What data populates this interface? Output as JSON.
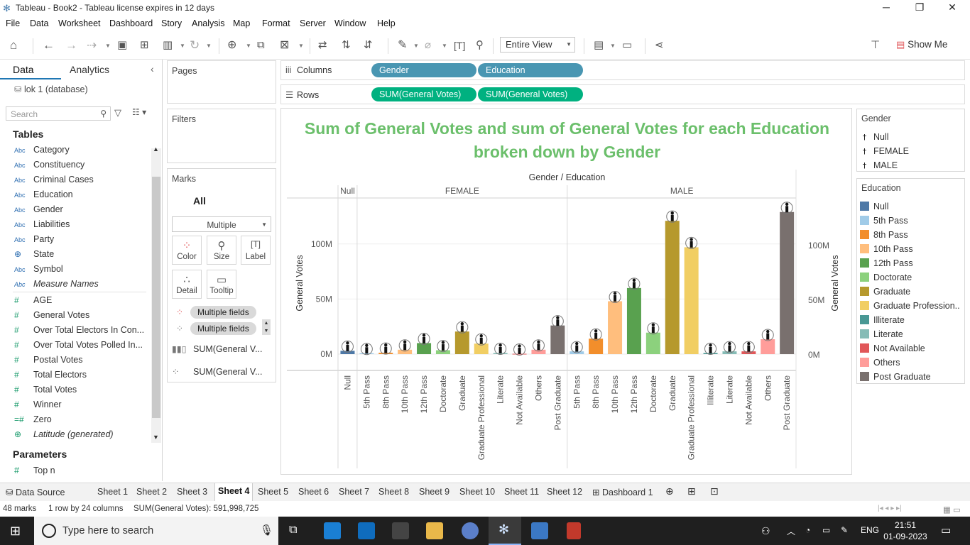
{
  "window": {
    "title": "Tableau - Book2 - Tableau license expires in 12 days"
  },
  "menu": [
    "File",
    "Data",
    "Worksheet",
    "Dashboard",
    "Story",
    "Analysis",
    "Map",
    "Format",
    "Server",
    "Window",
    "Help"
  ],
  "toolbar": {
    "fit_label": "Entire View",
    "show_me": "Show Me"
  },
  "data_pane": {
    "tab_data": "Data",
    "tab_analytics": "Analytics",
    "datasource": "lok 1 (database)",
    "search_placeholder": "Search",
    "tables_heading": "Tables",
    "fields": [
      {
        "type": "Abc",
        "name": "Category"
      },
      {
        "type": "Abc",
        "name": "Constituency"
      },
      {
        "type": "Abc",
        "name": "Criminal Cases"
      },
      {
        "type": "Abc",
        "name": "Education"
      },
      {
        "type": "Abc",
        "name": "Gender"
      },
      {
        "type": "Abc",
        "name": "Liabilities"
      },
      {
        "type": "Abc",
        "name": "Party"
      },
      {
        "type": "geo",
        "name": "State"
      },
      {
        "type": "Abc",
        "name": "Symbol"
      },
      {
        "type": "Abc",
        "name": "Measure Names",
        "italic": true
      },
      {
        "type": "#",
        "name": "AGE"
      },
      {
        "type": "#",
        "name": "General Votes"
      },
      {
        "type": "#",
        "name": "Over Total Electors  In Con..."
      },
      {
        "type": "#",
        "name": "Over Total Votes Polled  In..."
      },
      {
        "type": "#",
        "name": "Postal Votes"
      },
      {
        "type": "#",
        "name": "Total Electors"
      },
      {
        "type": "#",
        "name": "Total Votes"
      },
      {
        "type": "#",
        "name": "Winner"
      },
      {
        "type": "=#",
        "name": "Zero"
      },
      {
        "type": "geo",
        "name": "Latitude (generated)",
        "italic": true
      }
    ],
    "parameters_heading": "Parameters",
    "parameters": [
      "Top n"
    ]
  },
  "cards": {
    "pages": "Pages",
    "filters": "Filters",
    "marks": "Marks",
    "marks_all": "All",
    "mark_type": "Multiple",
    "mark_buttons": [
      "Color",
      "Size",
      "Label",
      "Detail",
      "Tooltip"
    ],
    "multiple_fields": "Multiple fields",
    "mark_rows": [
      "SUM(General V...",
      "SUM(General V..."
    ]
  },
  "shelves": {
    "columns_label": "Columns",
    "rows_label": "Rows",
    "columns": [
      "Gender",
      "Education"
    ],
    "rows": [
      "SUM(General Votes)",
      "SUM(General Votes)"
    ]
  },
  "legends": {
    "gender_title": "Gender",
    "gender": [
      "Null",
      "FEMALE",
      "MALE"
    ],
    "education_title": "Education",
    "education": [
      {
        "name": "Null",
        "color": "#4e79a7"
      },
      {
        "name": "5th Pass",
        "color": "#a0cbe8"
      },
      {
        "name": "8th Pass",
        "color": "#f28e2b"
      },
      {
        "name": "10th Pass",
        "color": "#ffbe7d"
      },
      {
        "name": "12th Pass",
        "color": "#59a14f"
      },
      {
        "name": "Doctorate",
        "color": "#8cd17d"
      },
      {
        "name": "Graduate",
        "color": "#b6992d"
      },
      {
        "name": "Graduate Profession..",
        "color": "#f1ce63"
      },
      {
        "name": "Illiterate",
        "color": "#499894"
      },
      {
        "name": "Literate",
        "color": "#86bcb6"
      },
      {
        "name": "Not Available",
        "color": "#e15759"
      },
      {
        "name": "Others",
        "color": "#ff9d9a"
      },
      {
        "name": "Post Graduate",
        "color": "#79706e"
      }
    ]
  },
  "chart_data": {
    "type": "bar",
    "title": "Sum of General Votes and sum of General Votes for each Education broken down by Gender",
    "header": "Gender / Education",
    "ylabel_left": "General Votes",
    "ylabel_right": "General Votes",
    "y_ticks_left": [
      "100M",
      "50M",
      "0M"
    ],
    "y_ticks_right": [
      "100M",
      "50M",
      "0M"
    ],
    "groups": [
      {
        "name": "Null",
        "categories": [
          "Null"
        ],
        "values": [
          3000000
        ]
      },
      {
        "name": "FEMALE",
        "categories": [
          "5th Pass",
          "8th Pass",
          "10th Pass",
          "12th Pass",
          "Doctorate",
          "Graduate",
          "Graduate Professional",
          "Literate",
          "Not Available",
          "Others",
          "Post Graduate"
        ],
        "values": [
          800000,
          1200000,
          4000000,
          10000000,
          3500000,
          20500000,
          9500000,
          1000000,
          300000,
          4000000,
          26000000
        ]
      },
      {
        "name": "MALE",
        "categories": [
          "5th Pass",
          "8th Pass",
          "10th Pass",
          "12th Pass",
          "Doctorate",
          "Graduate",
          "Graduate Professional",
          "Illiterate",
          "Literate",
          "Not Available",
          "Others",
          "Post Graduate"
        ],
        "values": [
          2500000,
          14000000,
          48000000,
          60000000,
          19500000,
          121000000,
          97000000,
          1000000,
          2500000,
          2500000,
          13500000,
          129000000
        ]
      }
    ],
    "ylim": [
      0,
      134000000
    ],
    "marks": "circle figure on each bar"
  },
  "sheet_tabs": [
    "Data Source",
    "Sheet 1",
    "Sheet 2",
    "Sheet 3",
    "Sheet 4",
    "Sheet 5",
    "Sheet 6",
    "Sheet 7",
    "Sheet 8",
    "Sheet 9",
    "Sheet 10",
    "Sheet 11",
    "Sheet 12",
    "Dashboard 1"
  ],
  "active_tab": "Sheet 4",
  "status": {
    "marks": "48 marks",
    "layout": "1 row by 24 columns",
    "sum": "SUM(General Votes): 591,998,725"
  },
  "taskbar": {
    "search": "Type here to search",
    "lang": "ENG",
    "time": "21:51",
    "date": "01-09-2023"
  }
}
